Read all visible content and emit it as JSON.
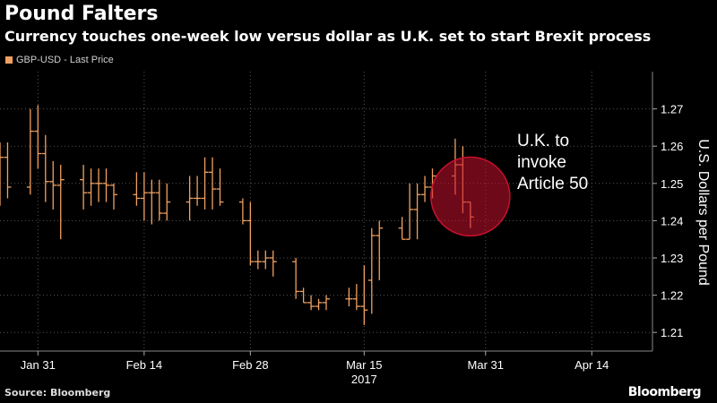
{
  "header": {
    "title": "Pound Falters",
    "subtitle": "Currency touches one-week low versus dollar as U.K. set to start Brexit process"
  },
  "legend": {
    "label": "GBP-USD - Last Price"
  },
  "footer": {
    "source": "Source: Bloomberg",
    "logo": "Bloomberg"
  },
  "annotation": {
    "text": "U.K. to invoke Article 50"
  },
  "colors": {
    "bar": "#f0a060",
    "highlight": "#c8102e",
    "grid": "#555555",
    "background": "#000000"
  },
  "chart_data": {
    "type": "ohlc",
    "title": "Pound Falters",
    "subtitle": "Currency touches one-week low versus dollar as U.K. set to start Brexit process",
    "xlabel": "",
    "ylabel": "U.S. Dollars per Pound",
    "ylim": [
      1.205,
      1.28
    ],
    "yticks": [
      1.21,
      1.22,
      1.23,
      1.24,
      1.25,
      1.26,
      1.27
    ],
    "ytick_labels": [
      "1.21",
      "1.22",
      "1.23",
      "1.24",
      "1.25",
      "1.26",
      "1.27"
    ],
    "xlim": [
      "2017-01-26",
      "2017-04-22"
    ],
    "xticks": [
      "2017-01-31",
      "2017-02-14",
      "2017-02-28",
      "2017-03-15",
      "2017-03-31",
      "2017-04-14"
    ],
    "xtick_labels": [
      "Jan 31",
      "Feb 14",
      "Feb 28",
      "Mar 15",
      "Mar 31",
      "Apr 14"
    ],
    "year_label": "2017",
    "grid": true,
    "legend_position": "top-left",
    "series": [
      {
        "name": "GBP-USD - Last Price",
        "x": [
          "2017-01-26",
          "2017-01-27",
          "2017-01-30",
          "2017-01-31",
          "2017-02-01",
          "2017-02-02",
          "2017-02-03",
          "2017-02-06",
          "2017-02-07",
          "2017-02-08",
          "2017-02-09",
          "2017-02-10",
          "2017-02-13",
          "2017-02-14",
          "2017-02-15",
          "2017-02-16",
          "2017-02-17",
          "2017-02-20",
          "2017-02-21",
          "2017-02-22",
          "2017-02-23",
          "2017-02-24",
          "2017-02-27",
          "2017-02-28",
          "2017-03-01",
          "2017-03-02",
          "2017-03-03",
          "2017-03-06",
          "2017-03-07",
          "2017-03-08",
          "2017-03-09",
          "2017-03-10",
          "2017-03-13",
          "2017-03-14",
          "2017-03-15",
          "2017-03-16",
          "2017-03-17",
          "2017-03-20",
          "2017-03-21",
          "2017-03-22",
          "2017-03-23",
          "2017-03-24",
          "2017-03-27",
          "2017-03-28",
          "2017-03-29"
        ],
        "open": [
          1.258,
          1.257,
          1.249,
          1.264,
          1.258,
          1.2505,
          1.2495,
          1.251,
          1.2475,
          1.25,
          1.25,
          1.2495,
          1.247,
          1.246,
          1.2475,
          1.2475,
          1.242,
          1.245,
          1.246,
          1.246,
          1.253,
          1.2485,
          1.245,
          1.24,
          1.229,
          1.229,
          1.23,
          1.229,
          1.221,
          1.218,
          1.217,
          1.218,
          1.219,
          1.219,
          1.217,
          1.224,
          1.236,
          1.238,
          1.235,
          1.243,
          1.247,
          1.249,
          1.252,
          1.255,
          1.245
        ],
        "high": [
          1.261,
          1.261,
          1.27,
          1.271,
          1.263,
          1.256,
          1.255,
          1.255,
          1.254,
          1.254,
          1.254,
          1.25,
          1.253,
          1.253,
          1.251,
          1.251,
          1.25,
          1.252,
          1.252,
          1.257,
          1.257,
          1.254,
          1.246,
          1.245,
          1.232,
          1.232,
          1.232,
          1.23,
          1.222,
          1.22,
          1.219,
          1.22,
          1.222,
          1.223,
          1.228,
          1.238,
          1.24,
          1.241,
          1.25,
          1.25,
          1.252,
          1.254,
          1.262,
          1.26,
          1.245
        ],
        "low": [
          1.244,
          1.246,
          1.247,
          1.254,
          1.245,
          1.243,
          1.235,
          1.243,
          1.244,
          1.245,
          1.245,
          1.243,
          1.244,
          1.24,
          1.239,
          1.24,
          1.24,
          1.24,
          1.244,
          1.243,
          1.243,
          1.244,
          1.239,
          1.228,
          1.227,
          1.227,
          1.225,
          1.219,
          1.218,
          1.216,
          1.216,
          1.216,
          1.217,
          1.216,
          1.212,
          1.215,
          1.224,
          1.235,
          1.235,
          1.235,
          1.245,
          1.246,
          1.247,
          1.242,
          1.238
        ],
        "close": [
          1.257,
          1.249,
          1.264,
          1.258,
          1.2505,
          1.2495,
          1.251,
          1.2475,
          1.25,
          1.25,
          1.2495,
          1.247,
          1.246,
          1.2475,
          1.2475,
          1.242,
          1.245,
          1.246,
          1.246,
          1.253,
          1.2485,
          1.245,
          1.24,
          1.229,
          1.229,
          1.23,
          1.229,
          1.221,
          1.218,
          1.217,
          1.218,
          1.219,
          1.219,
          1.217,
          1.216,
          1.236,
          1.238,
          1.235,
          1.243,
          1.247,
          1.249,
          1.252,
          1.255,
          1.245,
          1.241
        ]
      }
    ],
    "annotations": [
      {
        "text": "U.K. to invoke Article 50",
        "x": "2017-03-29",
        "y": 1.2465,
        "marker": "circle"
      }
    ]
  }
}
